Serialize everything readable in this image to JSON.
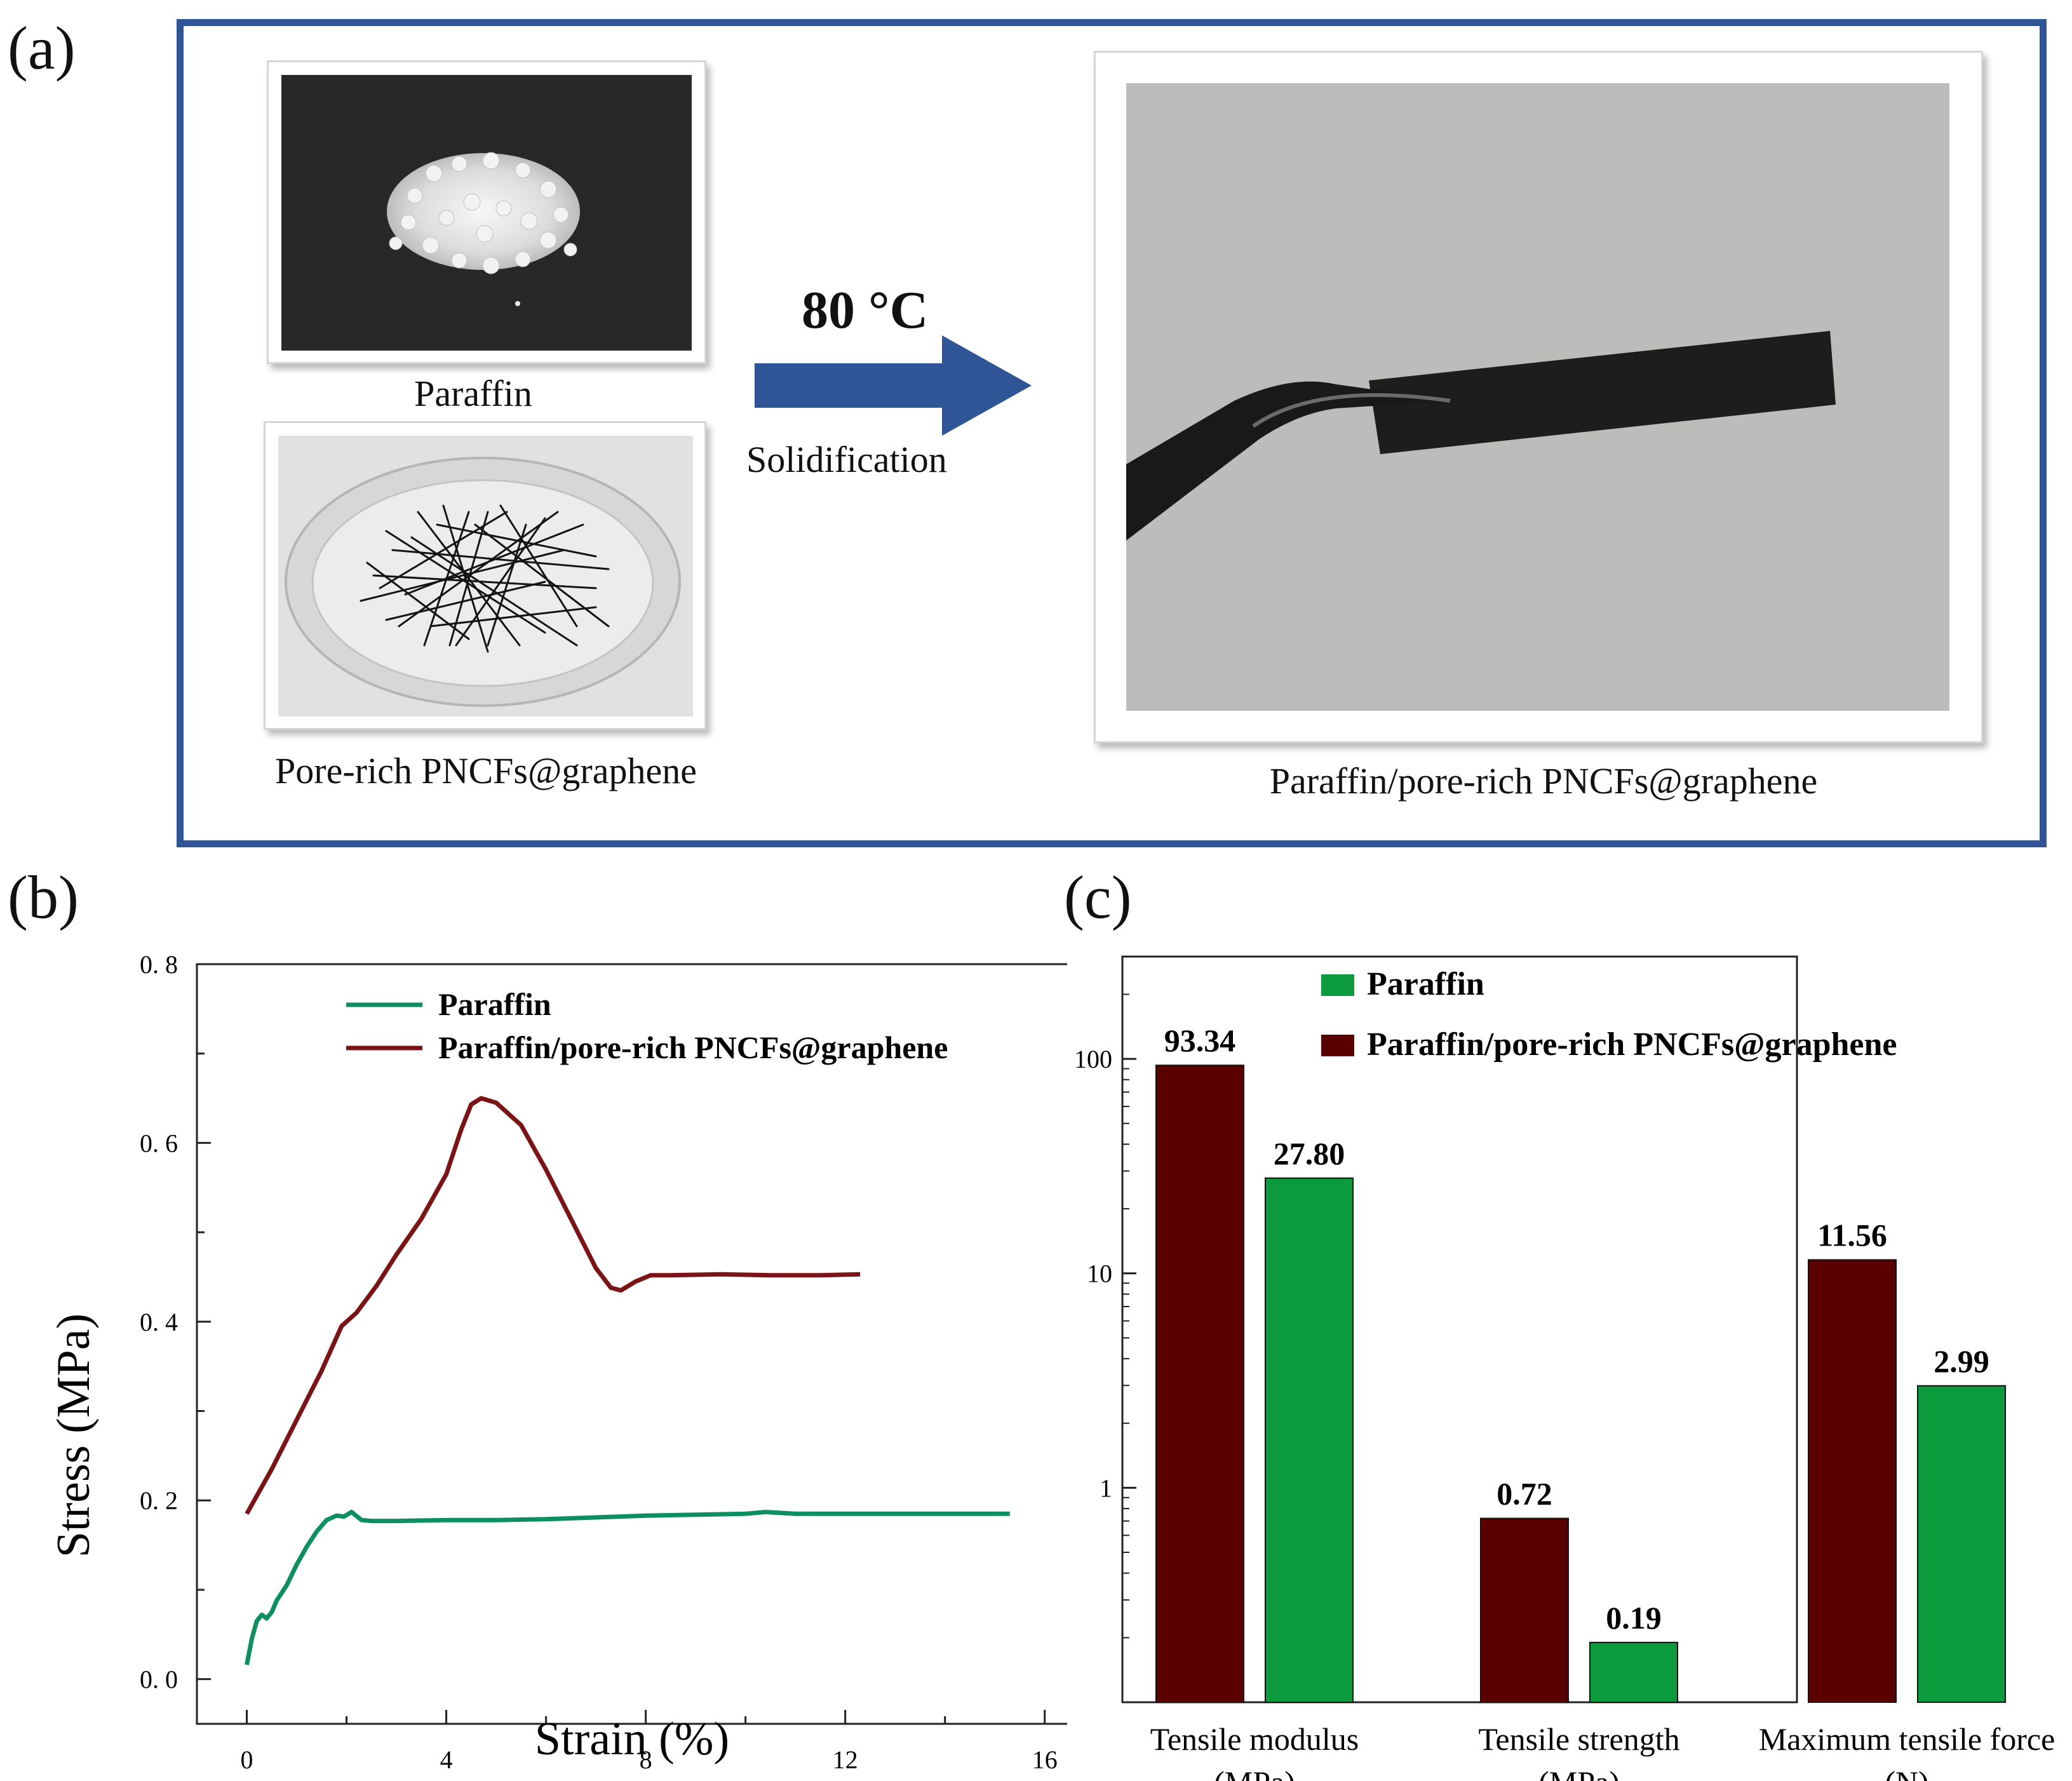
{
  "panel_labels": {
    "a": "(a)",
    "b": "(b)",
    "c": "(c)"
  },
  "panel_a": {
    "captions": {
      "paraffin": "Paraffin",
      "pncfs": "Pore-rich PNCFs@graphene",
      "composite": "Paraffin/pore-rich PNCFs@graphene"
    },
    "process": {
      "temperature": "80 °C",
      "step": "Solidification"
    },
    "colors": {
      "frame": "#2f5597",
      "arrow": "#2f5597"
    }
  },
  "chart_data": [
    {
      "type": "line",
      "xlabel": "Strain (%)",
      "ylabel": "Stress (MPa)",
      "xlim": [
        -1,
        16.5
      ],
      "ylim": [
        -0.05,
        0.8
      ],
      "xticks": [
        0,
        4,
        8,
        12,
        16
      ],
      "xtick_labels": [
        "0",
        "4",
        "8",
        "12",
        "16"
      ],
      "yticks": [
        0.0,
        0.2,
        0.4,
        0.6,
        0.8
      ],
      "ytick_labels": [
        "0. 0",
        "0. 2",
        "0. 4",
        "0. 6",
        "0. 8"
      ],
      "grid": false,
      "legend_position": "top-center",
      "series": [
        {
          "name": "Paraffin",
          "color": "#0e8f5f",
          "points": [
            [
              0,
              0.016
            ],
            [
              0.1,
              0.045
            ],
            [
              0.2,
              0.065
            ],
            [
              0.3,
              0.072
            ],
            [
              0.4,
              0.068
            ],
            [
              0.5,
              0.075
            ],
            [
              0.6,
              0.088
            ],
            [
              0.8,
              0.105
            ],
            [
              1.0,
              0.128
            ],
            [
              1.2,
              0.148
            ],
            [
              1.4,
              0.165
            ],
            [
              1.6,
              0.178
            ],
            [
              1.8,
              0.183
            ],
            [
              1.95,
              0.182
            ],
            [
              2.1,
              0.187
            ],
            [
              2.3,
              0.178
            ],
            [
              2.5,
              0.177
            ],
            [
              3.0,
              0.177
            ],
            [
              4.0,
              0.178
            ],
            [
              5.0,
              0.178
            ],
            [
              6.0,
              0.179
            ],
            [
              7.0,
              0.181
            ],
            [
              8.0,
              0.183
            ],
            [
              9.0,
              0.184
            ],
            [
              10.0,
              0.185
            ],
            [
              10.4,
              0.187
            ],
            [
              11.0,
              0.185
            ],
            [
              12.0,
              0.185
            ],
            [
              13.0,
              0.185
            ],
            [
              14.0,
              0.185
            ],
            [
              15.3,
              0.185
            ]
          ]
        },
        {
          "name": "Paraffin/pore-rich PNCFs@graphene",
          "color": "#7b1416",
          "points": [
            [
              0,
              0.185
            ],
            [
              0.5,
              0.235
            ],
            [
              1.0,
              0.29
            ],
            [
              1.5,
              0.345
            ],
            [
              1.9,
              0.395
            ],
            [
              2.2,
              0.41
            ],
            [
              2.6,
              0.44
            ],
            [
              3.0,
              0.475
            ],
            [
              3.5,
              0.515
            ],
            [
              4.0,
              0.565
            ],
            [
              4.3,
              0.615
            ],
            [
              4.5,
              0.643
            ],
            [
              4.7,
              0.65
            ],
            [
              5.0,
              0.645
            ],
            [
              5.5,
              0.62
            ],
            [
              6.0,
              0.57
            ],
            [
              6.5,
              0.515
            ],
            [
              7.0,
              0.46
            ],
            [
              7.3,
              0.438
            ],
            [
              7.5,
              0.435
            ],
            [
              7.8,
              0.445
            ],
            [
              8.1,
              0.452
            ],
            [
              8.5,
              0.452
            ],
            [
              9.5,
              0.453
            ],
            [
              10.5,
              0.452
            ],
            [
              11.5,
              0.452
            ],
            [
              12.3,
              0.453
            ]
          ]
        }
      ]
    },
    {
      "type": "bar",
      "y_scale": "log",
      "ylim": [
        0.1,
        300
      ],
      "yticks": [
        1,
        10,
        100
      ],
      "ytick_labels": [
        "1",
        "10",
        "100"
      ],
      "grid": false,
      "legend_position": "top-center",
      "categories": [
        {
          "line1": "Tensile modulus",
          "line2": "(MPa)"
        },
        {
          "line1": "Tensile strength",
          "line2": "(MPa)"
        },
        {
          "line1": "Maximum tensile force",
          "line2": "(N)"
        }
      ],
      "series": [
        {
          "name": "Paraffin/pore-rich PNCFs@graphene",
          "color": "#5a0000",
          "values": [
            93.34,
            0.72,
            11.56
          ],
          "labels": [
            "93.34",
            "0.72",
            "11.56"
          ]
        },
        {
          "name": "Paraffin",
          "color": "#0b9b3c",
          "values": [
            27.8,
            0.19,
            2.99
          ],
          "labels": [
            "27.80",
            "0.19",
            "2.99"
          ]
        }
      ],
      "legend_order": [
        "Paraffin",
        "Paraffin/pore-rich PNCFs@graphene"
      ]
    }
  ]
}
